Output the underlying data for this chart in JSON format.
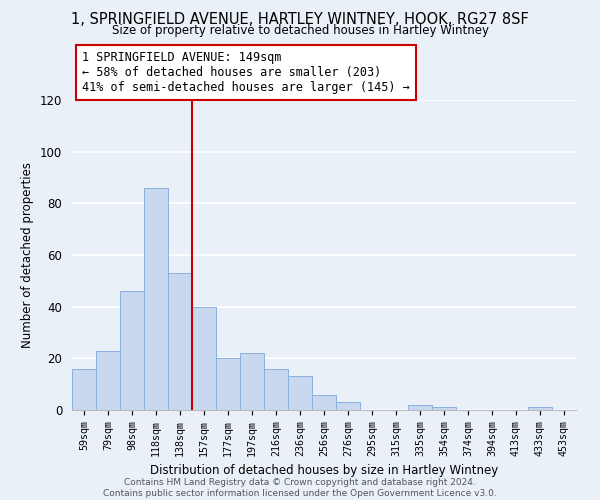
{
  "title": "1, SPRINGFIELD AVENUE, HARTLEY WINTNEY, HOOK, RG27 8SF",
  "subtitle": "Size of property relative to detached houses in Hartley Wintney",
  "xlabel": "Distribution of detached houses by size in Hartley Wintney",
  "ylabel": "Number of detached properties",
  "bar_labels": [
    "59sqm",
    "79sqm",
    "98sqm",
    "118sqm",
    "138sqm",
    "157sqm",
    "177sqm",
    "197sqm",
    "216sqm",
    "236sqm",
    "256sqm",
    "276sqm",
    "295sqm",
    "315sqm",
    "335sqm",
    "354sqm",
    "374sqm",
    "394sqm",
    "413sqm",
    "433sqm",
    "453sqm"
  ],
  "bar_values": [
    16,
    23,
    46,
    86,
    53,
    40,
    20,
    22,
    16,
    13,
    6,
    3,
    0,
    0,
    2,
    1,
    0,
    0,
    0,
    1,
    0
  ],
  "bar_color": "#c8d8ee",
  "bar_edge_color": "#8aafe0",
  "vline_color": "#cc0000",
  "annotation_title": "1 SPRINGFIELD AVENUE: 149sqm",
  "annotation_line1": "← 58% of detached houses are smaller (203)",
  "annotation_line2": "41% of semi-detached houses are larger (145) →",
  "annotation_box_color": "#ffffff",
  "annotation_box_edge": "#cc0000",
  "footer1": "Contains HM Land Registry data © Crown copyright and database right 2024.",
  "footer2": "Contains public sector information licensed under the Open Government Licence v3.0.",
  "ylim": [
    0,
    120
  ],
  "background_color": "#eaf0f8"
}
